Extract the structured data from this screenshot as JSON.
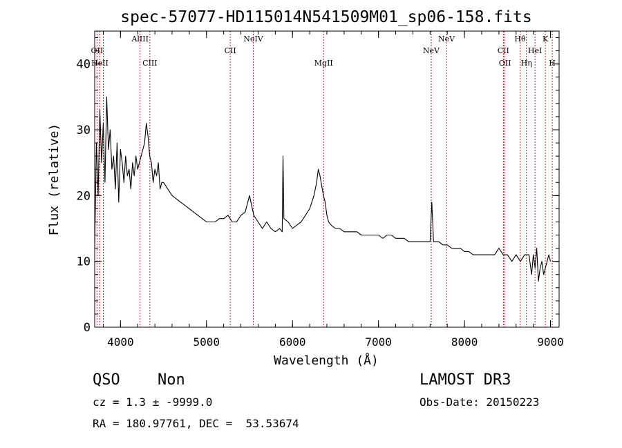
{
  "page": {
    "background": "#ffffff"
  },
  "chart_data": {
    "type": "line",
    "title": "spec-57077-HD115014N541509M01_sp06-158.fits",
    "xlabel": "Wavelength (Å)",
    "ylabel": "Flux (relative)",
    "xlim": [
      3700,
      9100
    ],
    "ylim": [
      0,
      45
    ],
    "xticks": [
      4000,
      5000,
      6000,
      7000,
      8000,
      9000
    ],
    "yticks": [
      0,
      10,
      20,
      30,
      40
    ],
    "x_minor_step": 200,
    "y_minor_step": 2,
    "grid": false,
    "line_color": "#000000",
    "marker_color": "#b22222",
    "series": [
      {
        "values_x": [
          3700,
          3720,
          3740,
          3760,
          3780,
          3800,
          3820,
          3840,
          3860,
          3880,
          3900,
          3920,
          3940,
          3960,
          3980,
          4000,
          4020,
          4040,
          4060,
          4080,
          4100,
          4120,
          4140,
          4160,
          4180,
          4200,
          4220,
          4240,
          4260,
          4280,
          4300,
          4320,
          4340,
          4360,
          4380,
          4400,
          4420,
          4440,
          4460,
          4480,
          4500,
          4550,
          4600,
          4650,
          4700,
          4750,
          4800,
          4850,
          4900,
          4950,
          5000,
          5050,
          5100,
          5150,
          5200,
          5250,
          5300,
          5350,
          5400,
          5450,
          5500,
          5550,
          5600,
          5650,
          5700,
          5750,
          5800,
          5850,
          5880,
          5890,
          5900,
          5950,
          6000,
          6050,
          6100,
          6150,
          6200,
          6250,
          6280,
          6300,
          6320,
          6340,
          6360,
          6380,
          6400,
          6420,
          6450,
          6500,
          6550,
          6600,
          6650,
          6700,
          6750,
          6800,
          6850,
          6900,
          6950,
          7000,
          7050,
          7100,
          7150,
          7200,
          7250,
          7300,
          7350,
          7400,
          7450,
          7500,
          7550,
          7600,
          7620,
          7640,
          7700,
          7750,
          7800,
          7850,
          7900,
          7950,
          8000,
          8050,
          8100,
          8150,
          8200,
          8250,
          8300,
          8350,
          8400,
          8450,
          8500,
          8550,
          8600,
          8650,
          8700,
          8750,
          8780,
          8800,
          8820,
          8840,
          8860,
          8880,
          8900,
          8920,
          8940,
          8960,
          8980,
          9000
        ],
        "values_y": [
          12,
          28,
          20,
          33,
          25,
          31,
          22,
          35,
          27,
          30,
          24,
          26,
          21,
          28,
          19,
          27,
          25,
          22,
          26,
          23,
          24,
          21,
          25,
          23,
          26,
          24,
          25,
          26,
          27,
          28,
          31,
          29,
          26,
          25,
          22,
          24,
          23,
          25,
          21,
          22,
          22,
          21,
          20,
          19.5,
          19,
          18.5,
          18,
          17.5,
          17,
          16.5,
          16,
          16,
          16,
          16.5,
          16.5,
          17,
          16,
          16,
          17,
          17.5,
          20,
          17,
          16,
          15,
          16,
          15,
          14.5,
          15,
          14.5,
          26,
          16.5,
          16,
          15,
          15.5,
          16,
          17,
          18,
          20,
          22,
          24,
          23,
          21.5,
          20,
          19,
          17,
          16,
          15.5,
          15,
          15,
          14.5,
          14.5,
          14.5,
          14.5,
          14,
          14,
          14,
          14,
          14,
          13.5,
          14,
          14,
          13.5,
          13.5,
          13.5,
          13,
          13,
          13,
          13,
          13,
          13,
          19,
          13,
          13,
          12.5,
          12.5,
          12,
          12,
          12,
          11.5,
          11.5,
          11,
          11,
          11,
          11,
          11,
          11,
          12,
          11,
          11,
          10,
          11,
          10,
          11,
          11,
          8,
          11,
          9,
          12,
          7,
          9,
          10,
          8,
          9,
          10,
          11,
          10
        ]
      }
    ],
    "line_markers": [
      {
        "x": 3727,
        "label": "OII",
        "row": 3
      },
      {
        "x": 3760,
        "label": "HeII",
        "row": 4
      },
      {
        "x": 3800,
        "label": "",
        "row": 0
      },
      {
        "x": 4228,
        "label": "AlIII",
        "row": 1
      },
      {
        "x": 4342,
        "label": "CIII",
        "row": 4
      },
      {
        "x": 5276,
        "label": "CII",
        "row": 3
      },
      {
        "x": 5544,
        "label": "NeIV",
        "row": 1
      },
      {
        "x": 6362,
        "label": "MgII",
        "row": 4
      },
      {
        "x": 7613,
        "label": "NeV",
        "row": 3
      },
      {
        "x": 7791,
        "label": "NeV",
        "row": 1
      },
      {
        "x": 8452,
        "label": "CII",
        "row": 3
      },
      {
        "x": 8470,
        "label": "OII",
        "row": 4
      },
      {
        "x": 8646,
        "label": "Hθ",
        "row": 1
      },
      {
        "x": 8720,
        "label": "Hη",
        "row": 4
      },
      {
        "x": 8820,
        "label": "HeI",
        "row": 2
      },
      {
        "x": 8940,
        "label": "K",
        "row": 1
      },
      {
        "x": 9020,
        "label": "H",
        "row": 4
      }
    ]
  },
  "footer": {
    "object_class": "QSO",
    "subclass": "Non",
    "survey": "LAMOST DR3",
    "cz_line": "cz = 1.3 ± -9999.0",
    "obs_date": "Obs-Date: 20150223",
    "coords": "RA = 180.97761, DEC =  53.53674"
  }
}
